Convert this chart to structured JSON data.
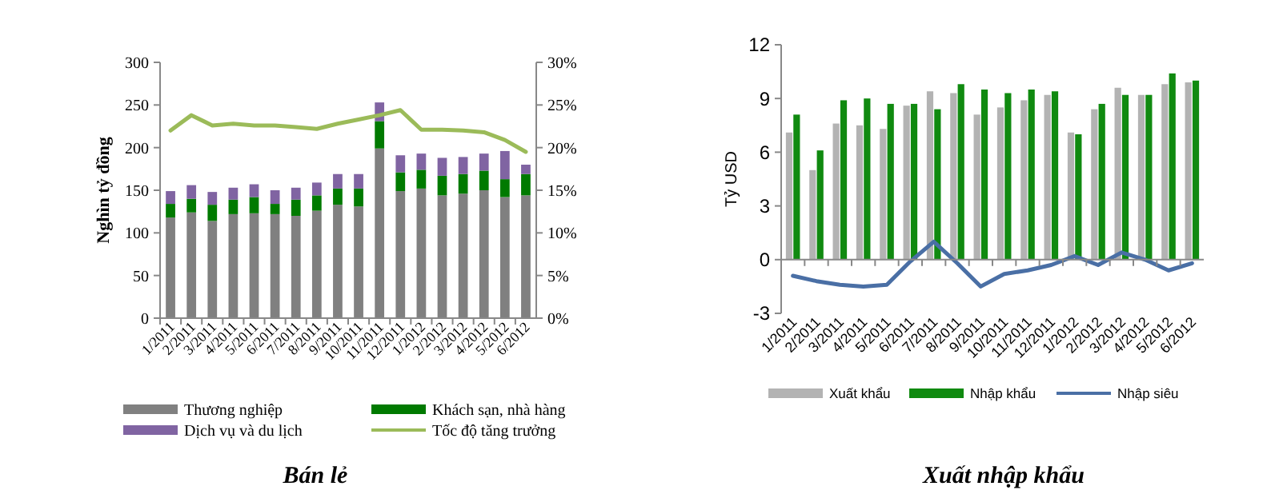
{
  "chart_data": [
    {
      "type": "bar",
      "title": "Bán lẻ",
      "ylabel": "Nghìn tỷ đồng",
      "stacked": true,
      "legend": "bottom",
      "categories": [
        "1/2011",
        "2/2011",
        "3/2011",
        "4/2011",
        "5/2011",
        "6/2011",
        "7/2011",
        "8/2011",
        "9/2011",
        "10/2011",
        "11/2011",
        "12/2011",
        "1/2012",
        "2/2012",
        "3/2012",
        "4/2012",
        "5/2012",
        "6/2012"
      ],
      "series": [
        {
          "name": "Thương nghiệp",
          "color": "#808080",
          "values": [
            118,
            124,
            114,
            122,
            123,
            122,
            120,
            126,
            133,
            131,
            199,
            149,
            152,
            144,
            146,
            150,
            142,
            144
          ]
        },
        {
          "name": "Khách sạn, nhà hàng",
          "color": "#007a00",
          "values": [
            16,
            16,
            19,
            17,
            19,
            12,
            19,
            18,
            19,
            21,
            32,
            22,
            22,
            23,
            23,
            23,
            21,
            25
          ]
        },
        {
          "name": "Dịch vụ và du lịch",
          "color": "#8064a2",
          "values": [
            15,
            16,
            15,
            14,
            15,
            16,
            14,
            15,
            17,
            17,
            22,
            20,
            19,
            21,
            20,
            20,
            33,
            11
          ]
        },
        {
          "name": "Tốc độ tăng trưởng",
          "type": "line",
          "axis": "y2",
          "color": "#9bbb59",
          "values": [
            22.0,
            23.8,
            22.6,
            22.8,
            22.6,
            22.6,
            22.4,
            22.2,
            22.8,
            23.3,
            23.8,
            24.4,
            22.1,
            22.1,
            22.0,
            21.8,
            20.9,
            19.5
          ]
        }
      ],
      "ylim": [
        0,
        300
      ],
      "yticks": [
        0,
        50,
        100,
        150,
        200,
        250,
        300
      ],
      "y2lim": [
        0,
        30
      ],
      "y2ticks": [
        {
          "value": 0,
          "label": "0%"
        },
        {
          "value": 5,
          "label": "5%"
        },
        {
          "value": 10,
          "label": "10%"
        },
        {
          "value": 15,
          "label": "15%"
        },
        {
          "value": 20,
          "label": "20%"
        },
        {
          "value": 25,
          "label": "25%"
        },
        {
          "value": 30,
          "label": "30%"
        }
      ]
    },
    {
      "type": "bar",
      "title": "Xuất nhập khẩu",
      "ylabel": "Tỷ USD",
      "legend": "bottom",
      "categories": [
        "1/2011",
        "2/2011",
        "3/2011",
        "4/2011",
        "5/2011",
        "6/2011",
        "7/2011",
        "8/2011",
        "9/2011",
        "10/2011",
        "11/2011",
        "12/2011",
        "1/2012",
        "2/2012",
        "3/2012",
        "4/2012",
        "5/2012",
        "6/2012"
      ],
      "series": [
        {
          "name": "Xuất khẩu",
          "color": "#b3b3b3",
          "values": [
            7.1,
            5.0,
            7.6,
            7.5,
            7.3,
            8.6,
            9.4,
            9.3,
            8.1,
            8.5,
            8.9,
            9.2,
            7.1,
            8.4,
            9.6,
            9.2,
            9.8,
            9.9
          ]
        },
        {
          "name": "Nhập khẩu",
          "color": "#108a10",
          "values": [
            8.1,
            6.1,
            8.9,
            9.0,
            8.7,
            8.7,
            8.4,
            9.8,
            9.5,
            9.3,
            9.5,
            9.4,
            7.0,
            8.7,
            9.2,
            9.2,
            10.4,
            10.0
          ]
        },
        {
          "name": "Nhập siêu",
          "type": "line",
          "color": "#4a6fa5",
          "values": [
            -0.9,
            -1.2,
            -1.4,
            -1.5,
            -1.4,
            -0.1,
            1.0,
            -0.2,
            -1.5,
            -0.8,
            -0.6,
            -0.3,
            0.2,
            -0.3,
            0.4,
            0.0,
            -0.6,
            -0.2
          ]
        }
      ],
      "ylim": [
        -3,
        12
      ],
      "yticks": [
        -3,
        0,
        3,
        6,
        9,
        12
      ]
    }
  ]
}
